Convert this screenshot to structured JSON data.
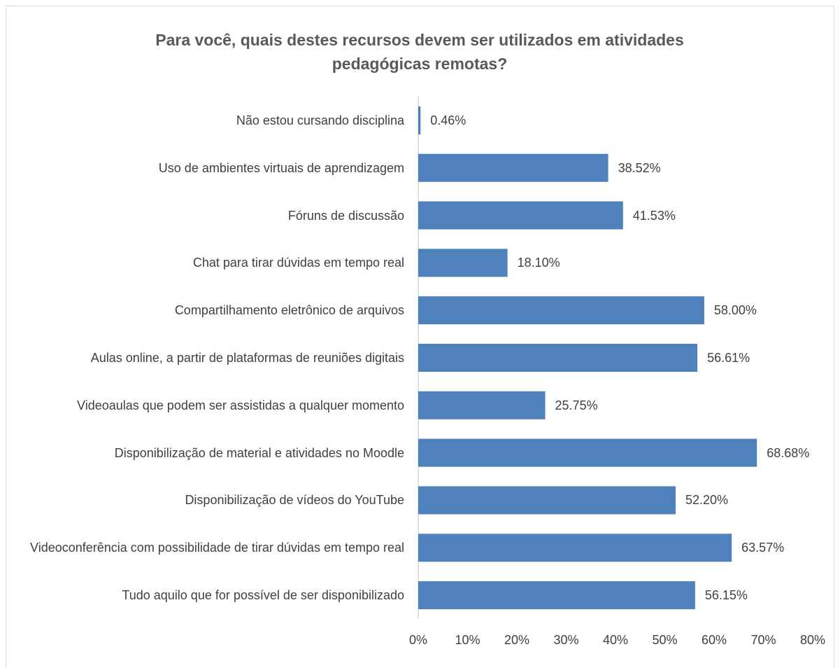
{
  "chart_data": {
    "type": "bar",
    "orientation": "horizontal",
    "title": "Para você, quais destes recursos devem ser utilizados em atividades pedagógicas remotas?",
    "categories": [
      "Não estou cursando disciplina",
      "Uso de ambientes virtuais de aprendizagem",
      "Fóruns de discussão",
      "Chat para tirar dúvidas em tempo real",
      "Compartilhamento eletrônico de arquivos",
      "Aulas online, a partir de plataformas de reuniões digitais",
      "Videoaulas que podem ser assistidas a qualquer momento",
      "Disponibilização de material e atividades no Moodle",
      "Disponibilização de vídeos do YouTube",
      "Videoconferência com possibilidade de tirar dúvidas em tempo real",
      "Tudo aquilo que for possível de ser disponibilizado"
    ],
    "values": [
      0.46,
      38.52,
      41.53,
      18.1,
      58.0,
      56.61,
      25.75,
      68.68,
      52.2,
      63.57,
      56.15
    ],
    "value_labels": [
      "0.46%",
      "38.52%",
      "41.53%",
      "18.10%",
      "58.00%",
      "56.61%",
      "25.75%",
      "68.68%",
      "52.20%",
      "63.57%",
      "56.15%"
    ],
    "color": "#4f81bd",
    "xlim": [
      0,
      80
    ],
    "xticks": [
      {
        "value": 0,
        "label": "0%"
      },
      {
        "value": 10,
        "label": "10%"
      },
      {
        "value": 20,
        "label": "20%"
      },
      {
        "value": 30,
        "label": "30%"
      },
      {
        "value": 40,
        "label": "40%"
      },
      {
        "value": 50,
        "label": "50%"
      },
      {
        "value": 60,
        "label": "60%"
      },
      {
        "value": 70,
        "label": "70%"
      },
      {
        "value": 80,
        "label": "80%"
      }
    ],
    "grid": false
  }
}
